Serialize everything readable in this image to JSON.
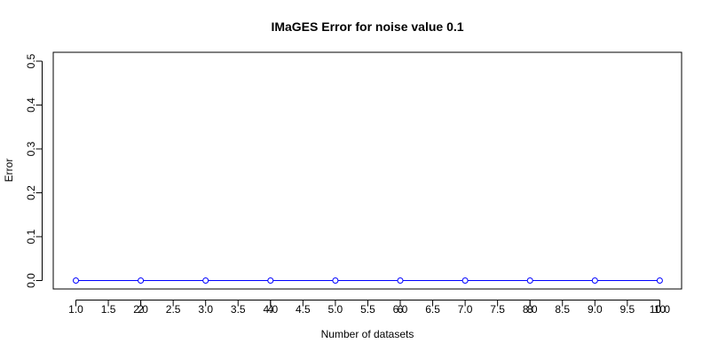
{
  "chart_data": {
    "type": "line",
    "title": "IMaGES Error for noise value 0.1",
    "xlabel": "Number of datasets",
    "ylabel": "Error",
    "x_ticks_primary": [
      "1.0",
      "1.5",
      "2.0",
      "2.5",
      "3.0",
      "3.5",
      "4.0",
      "4.5",
      "5.0",
      "5.5",
      "6.0",
      "6.5",
      "7.0",
      "7.5",
      "8.0",
      "8.5",
      "9.0",
      "9.5",
      "10.0"
    ],
    "x_ticks_integer": [
      "2",
      "4",
      "6",
      "8",
      "10"
    ],
    "y_ticks": [
      "0.0",
      "0.1",
      "0.2",
      "0.3",
      "0.4",
      "0.5"
    ],
    "xlim": [
      1,
      10
    ],
    "ylim": [
      0,
      0.5
    ],
    "grid": false,
    "series": [
      {
        "x": [
          1,
          2,
          3,
          4,
          5,
          6,
          7,
          8,
          9,
          10
        ],
        "values": [
          0,
          0,
          0,
          0,
          0,
          0,
          0,
          0,
          0,
          0
        ],
        "color": "#0000ff",
        "marker": "open-circle"
      }
    ]
  }
}
